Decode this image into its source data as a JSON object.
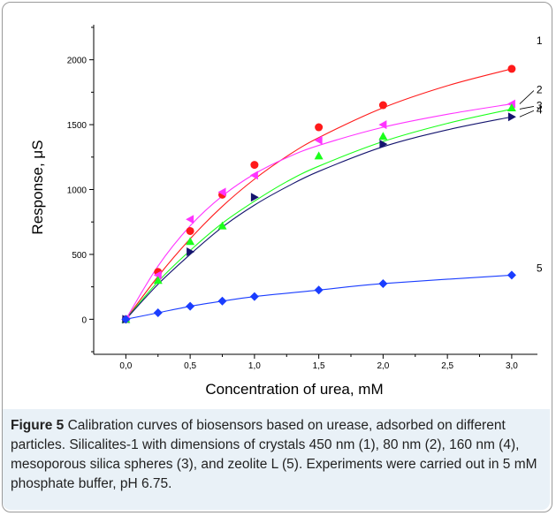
{
  "chart_data": {
    "type": "scatter",
    "xlabel": "Concentration of urea, mM",
    "ylabel": "Response, μS",
    "xlim": [
      -0.25,
      3.2
    ],
    "ylim": [
      -270,
      2270
    ],
    "xticks": [
      0.0,
      0.5,
      1.0,
      1.5,
      2.0,
      2.5,
      3.0
    ],
    "xtick_labels": [
      "0,0",
      "0,5",
      "1,0",
      "1,5",
      "2,0",
      "2,5",
      "3,0"
    ],
    "yticks": [
      0,
      500,
      1000,
      1500,
      2000
    ],
    "ytick_labels": [
      "0",
      "500",
      "1000",
      "1500",
      "2000"
    ],
    "grid": false,
    "series": [
      {
        "name": "1",
        "color": "#ff1a1a",
        "marker": "circle",
        "x": [
          0,
          0.25,
          0.5,
          0.75,
          1.0,
          1.5,
          2.0,
          3.0
        ],
        "y": [
          0,
          365,
          680,
          960,
          1190,
          1480,
          1650,
          1930
        ],
        "fit": [
          [
            0,
            0
          ],
          [
            0.25,
            330
          ],
          [
            0.5,
            620
          ],
          [
            0.75,
            870
          ],
          [
            1.0,
            1080
          ],
          [
            1.25,
            1255
          ],
          [
            1.5,
            1400
          ],
          [
            2.0,
            1630
          ],
          [
            2.5,
            1800
          ],
          [
            3.0,
            1930
          ]
        ]
      },
      {
        "name": "2",
        "color": "#ff33ff",
        "marker": "triangle-left",
        "x": [
          0,
          0.25,
          0.5,
          0.75,
          1.0,
          1.5,
          2.0,
          3.0
        ],
        "y": [
          0,
          340,
          770,
          980,
          1110,
          1380,
          1500,
          1660
        ],
        "fit": [
          [
            0,
            0
          ],
          [
            0.25,
            410
          ],
          [
            0.5,
            720
          ],
          [
            0.75,
            950
          ],
          [
            1.0,
            1120
          ],
          [
            1.25,
            1245
          ],
          [
            1.5,
            1340
          ],
          [
            2.0,
            1480
          ],
          [
            2.5,
            1580
          ],
          [
            3.0,
            1660
          ]
        ]
      },
      {
        "name": "3",
        "color": "#1aff1a",
        "marker": "triangle-up",
        "x": [
          0,
          0.25,
          0.5,
          0.75,
          1.5,
          2.0,
          3.0
        ],
        "y": [
          0,
          300,
          600,
          720,
          1260,
          1410,
          1630
        ],
        "fit": [
          [
            0,
            0
          ],
          [
            0.25,
            290
          ],
          [
            0.5,
            530
          ],
          [
            0.75,
            740
          ],
          [
            1.0,
            910
          ],
          [
            1.25,
            1060
          ],
          [
            1.5,
            1180
          ],
          [
            2.0,
            1370
          ],
          [
            2.5,
            1510
          ],
          [
            3.0,
            1620
          ]
        ]
      },
      {
        "name": "4",
        "color": "#14146e",
        "marker": "triangle-right",
        "x": [
          0,
          0.5,
          1.0,
          2.0,
          3.0
        ],
        "y": [
          0,
          520,
          940,
          1350,
          1560
        ],
        "fit": [
          [
            0,
            0
          ],
          [
            0.25,
            270
          ],
          [
            0.5,
            500
          ],
          [
            0.75,
            710
          ],
          [
            1.0,
            880
          ],
          [
            1.25,
            1020
          ],
          [
            1.5,
            1140
          ],
          [
            2.0,
            1330
          ],
          [
            2.5,
            1460
          ],
          [
            3.0,
            1560
          ]
        ]
      },
      {
        "name": "5",
        "color": "#1a3dff",
        "marker": "diamond",
        "x": [
          0,
          0.25,
          0.5,
          0.75,
          1.0,
          1.5,
          2.0,
          3.0
        ],
        "y": [
          0,
          50,
          100,
          140,
          175,
          225,
          275,
          340
        ],
        "fit": [
          [
            0,
            0
          ],
          [
            0.25,
            50
          ],
          [
            0.5,
            100
          ],
          [
            0.75,
            140
          ],
          [
            1.0,
            175
          ],
          [
            1.5,
            225
          ],
          [
            2.0,
            275
          ],
          [
            3.0,
            340
          ]
        ]
      }
    ]
  },
  "caption": {
    "label": "Figure 5",
    "text": "Calibration curves of biosensors based on urease, adsorbed on different particles. Silicalites-1 with dimensions of crystals 450 nm (1), 80 nm (2), 160 nm (4), mesoporous silica spheres (3), and zeolite L (5). Experiments were carried out in 5 mM phosphate buffer, pH 6.75."
  }
}
